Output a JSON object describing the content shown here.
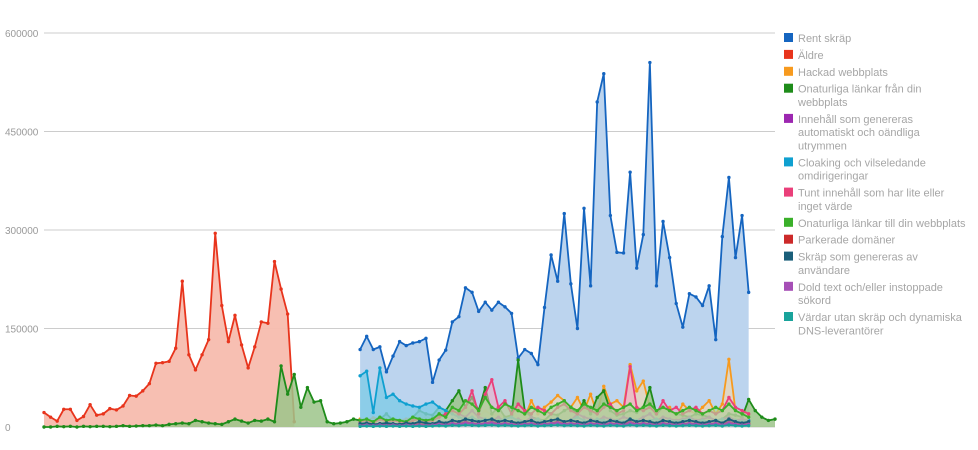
{
  "chart_data": {
    "type": "area",
    "title": "",
    "xlabel": "",
    "ylabel": "",
    "ylim": [
      0,
      600000
    ],
    "yticks": [
      0,
      150000,
      300000,
      450000,
      600000
    ],
    "ytick_labels": [
      "0",
      "150000",
      "300000",
      "450000",
      "600000"
    ],
    "grid": true,
    "legend_position": "right",
    "x_count": 112,
    "series": [
      {
        "name": "Rent skräp",
        "color": "#1565c0",
        "fill": "#bcd4ee",
        "fill_opacity": 1.0,
        "start": 48,
        "values": [
          118000,
          138000,
          118000,
          122000,
          84000,
          108000,
          130000,
          124000,
          128000,
          130000,
          135000,
          68000,
          102000,
          117000,
          160000,
          168000,
          212000,
          205000,
          176000,
          190000,
          178000,
          190000,
          183000,
          173000,
          105000,
          118000,
          112000,
          95000,
          182000,
          262000,
          222000,
          325000,
          218000,
          150000,
          333000,
          215000,
          495000,
          538000,
          322000,
          266000,
          265000,
          388000,
          242000,
          293000,
          555000,
          215000,
          313000,
          258000,
          188000,
          152000,
          203000,
          198000,
          185000,
          215000,
          133000,
          290000,
          380000,
          258000,
          322000,
          205000
        ]
      },
      {
        "name": "Äldre",
        "color": "#e8341c",
        "fill": "#f7bcae",
        "fill_opacity": 0.95,
        "start": 0,
        "values": [
          22000,
          15000,
          9000,
          27000,
          27000,
          10000,
          16000,
          34000,
          18000,
          20000,
          28000,
          26000,
          32000,
          48000,
          47000,
          55000,
          66000,
          97000,
          98000,
          100000,
          120000,
          222000,
          110000,
          87000,
          110000,
          133000,
          295000,
          185000,
          130000,
          170000,
          125000,
          90000,
          122000,
          160000,
          158000,
          252000,
          210000,
          172000,
          8000
        ]
      },
      {
        "name": "Hackad webbplats",
        "color": "#f79a1e",
        "fill": "#fcd7a6",
        "fill_opacity": 0.55,
        "start": 48,
        "values": [
          12000,
          10000,
          14000,
          12000,
          9000,
          11000,
          10000,
          12000,
          14000,
          10000,
          15000,
          12000,
          20000,
          15000,
          25000,
          12000,
          30000,
          22000,
          15000,
          25000,
          18000,
          20000,
          12000,
          14000,
          30000,
          15000,
          40000,
          20000,
          30000,
          38000,
          48000,
          40000,
          30000,
          45000,
          25000,
          50000,
          20000,
          62000,
          35000,
          40000,
          30000,
          95000,
          55000,
          70000,
          30000,
          20000,
          25000,
          30000,
          15000,
          35000,
          25000,
          20000,
          30000,
          40000,
          20000,
          35000,
          103000,
          25000,
          20000,
          18000
        ]
      },
      {
        "name": "Onaturliga länkar från din webbplats",
        "color": "#1e8c1a",
        "fill": "#9cc48a",
        "fill_opacity": 0.85,
        "start": 0,
        "values": [
          0,
          0,
          1000,
          500,
          1000,
          0,
          1000,
          500,
          1000,
          1000,
          500,
          1000,
          2000,
          1000,
          1500,
          2000,
          2000,
          3000,
          2000,
          4000,
          5000,
          6000,
          5000,
          10000,
          8000,
          6000,
          5000,
          4000,
          8000,
          12000,
          9000,
          6000,
          10000,
          9000,
          12000,
          8000,
          93000,
          50000,
          80000,
          30000,
          60000,
          38000,
          40000,
          8000,
          5000,
          6000,
          8000,
          12000,
          10000,
          8000,
          6000,
          12000,
          20000,
          10000,
          8000,
          5000,
          15000,
          25000,
          20000,
          18000,
          30000,
          25000,
          40000,
          55000,
          30000,
          45000,
          25000,
          60000,
          20000,
          30000,
          15000,
          18000,
          102000,
          25000,
          15000,
          12000,
          10000,
          20000,
          18000,
          25000,
          30000,
          20000,
          40000,
          20000,
          45000,
          55000,
          25000,
          18000,
          20000,
          25000,
          22000,
          30000,
          60000,
          20000,
          30000,
          25000,
          20000,
          18000,
          15000,
          20000,
          18000,
          15000,
          10000,
          12000,
          20000,
          18000,
          15000,
          42000,
          25000,
          15000,
          10000,
          12000
        ]
      },
      {
        "name": "Innehåll som genereras automatiskt och oändliga utrymmen",
        "color": "#9c27b0",
        "fill": "#d7a9e0",
        "fill_opacity": 0.45,
        "start": 48,
        "values": [
          5000,
          6000,
          4000,
          8000,
          5000,
          6000,
          7000,
          5000,
          6000,
          8000,
          5000,
          6000,
          10000,
          8000,
          12000,
          20000,
          15000,
          25000,
          15000,
          12000,
          10000,
          15000,
          8000,
          10000,
          12000,
          8000,
          15000,
          10000,
          8000,
          10000,
          12000,
          8000,
          10000,
          20000,
          15000,
          12000,
          10000,
          15000,
          12000,
          10000,
          15000,
          12000,
          10000,
          15000,
          20000,
          10000,
          15000,
          12000,
          10000,
          12000,
          15000,
          10000,
          12000,
          15000,
          10000,
          12000,
          15000,
          10000,
          12000,
          10000
        ]
      },
      {
        "name": "Cloaking och vilseledande omdirigeringar",
        "color": "#0fa0d0",
        "fill": "#7fcbe6",
        "fill_opacity": 0.8,
        "start": 48,
        "values": [
          78000,
          85000,
          22000,
          90000,
          45000,
          50000,
          40000,
          35000,
          32000,
          30000,
          35000,
          38000,
          30000,
          25000,
          20000,
          15000,
          12000,
          15000,
          10000,
          12000,
          8000,
          10000,
          12000,
          15000,
          10000,
          8000,
          10000,
          12000,
          8000,
          10000,
          12000,
          8000,
          10000,
          15000,
          10000,
          8000,
          12000,
          10000,
          8000,
          10000,
          8000,
          12000,
          10000,
          8000,
          10000,
          12000,
          8000,
          10000,
          8000,
          10000,
          12000,
          8000,
          10000,
          8000,
          10000,
          12000,
          8000,
          10000,
          8000,
          10000
        ]
      },
      {
        "name": "Tunt innehåll som har lite eller inget värde",
        "color": "#ea3f7a",
        "fill": "#f3a9c2",
        "fill_opacity": 0.55,
        "start": 48,
        "values": [
          8000,
          10000,
          6000,
          12000,
          8000,
          10000,
          8000,
          6000,
          10000,
          12000,
          8000,
          10000,
          15000,
          20000,
          25000,
          20000,
          30000,
          55000,
          20000,
          50000,
          72000,
          30000,
          40000,
          20000,
          35000,
          25000,
          20000,
          30000,
          25000,
          20000,
          30000,
          35000,
          25000,
          20000,
          30000,
          25000,
          20000,
          30000,
          35000,
          20000,
          25000,
          92000,
          30000,
          25000,
          30000,
          20000,
          40000,
          25000,
          30000,
          20000,
          25000,
          30000,
          20000,
          25000,
          20000,
          25000,
          45000,
          30000,
          25000,
          20000
        ]
      },
      {
        "name": "Onaturliga länkar till din webbplats",
        "color": "#3ab02a",
        "fill": "#a8dc98",
        "fill_opacity": 0.6,
        "start": 48,
        "values": [
          10000,
          12000,
          8000,
          15000,
          10000,
          12000,
          10000,
          8000,
          15000,
          12000,
          10000,
          12000,
          20000,
          15000,
          30000,
          25000,
          40000,
          35000,
          25000,
          45000,
          30000,
          25000,
          35000,
          30000,
          25000,
          20000,
          30000,
          25000,
          20000,
          30000,
          35000,
          40000,
          30000,
          25000,
          35000,
          30000,
          25000,
          35000,
          30000,
          25000,
          30000,
          35000,
          25000,
          30000,
          35000,
          25000,
          30000,
          25000,
          20000,
          25000,
          30000,
          25000,
          20000,
          25000,
          30000,
          25000,
          35000,
          25000,
          20000,
          15000
        ]
      },
      {
        "name": "Parkerade domäner",
        "color": "#cc2a2a",
        "fill": "#e8a0a0",
        "fill_opacity": 0.5,
        "start": 48,
        "values": [
          3000,
          4000,
          2000,
          5000,
          3000,
          4000,
          3000,
          2000,
          4000,
          5000,
          3000,
          4000,
          5000,
          4000,
          6000,
          5000,
          8000,
          6000,
          5000,
          6000,
          8000,
          5000,
          6000,
          5000,
          4000,
          5000,
          6000,
          4000,
          5000,
          6000,
          8000,
          5000,
          6000,
          5000,
          4000,
          6000,
          5000,
          4000,
          6000,
          5000,
          4000,
          8000,
          5000,
          6000,
          5000,
          4000,
          6000,
          5000,
          4000,
          5000,
          6000,
          5000,
          4000,
          5000,
          6000,
          4000,
          8000,
          5000,
          4000,
          5000
        ]
      },
      {
        "name": "Skräp som genereras av användare",
        "color": "#1a5f7a",
        "fill": "#8ab5c6",
        "fill_opacity": 0.5,
        "start": 48,
        "values": [
          5000,
          6000,
          4000,
          5000,
          6000,
          5000,
          4000,
          6000,
          5000,
          8000,
          6000,
          5000,
          8000,
          6000,
          10000,
          8000,
          12000,
          10000,
          8000,
          10000,
          12000,
          8000,
          10000,
          8000,
          6000,
          8000,
          10000,
          6000,
          8000,
          10000,
          12000,
          8000,
          10000,
          8000,
          6000,
          10000,
          8000,
          6000,
          10000,
          8000,
          6000,
          12000,
          8000,
          10000,
          8000,
          6000,
          10000,
          8000,
          6000,
          8000,
          10000,
          8000,
          6000,
          8000,
          10000,
          6000,
          12000,
          8000,
          6000,
          8000
        ]
      },
      {
        "name": "Dold text och/eller instoppade sökord",
        "color": "#a64fb6",
        "fill": "#d5b0dd",
        "fill_opacity": 0.5,
        "start": 48,
        "values": [
          2000,
          3000,
          2000,
          3000,
          2000,
          3000,
          2000,
          3000,
          2000,
          3000,
          2000,
          3000,
          4000,
          3000,
          5000,
          4000,
          6000,
          5000,
          4000,
          5000,
          6000,
          4000,
          5000,
          4000,
          3000,
          4000,
          5000,
          3000,
          4000,
          5000,
          6000,
          4000,
          5000,
          4000,
          3000,
          5000,
          4000,
          3000,
          5000,
          4000,
          3000,
          6000,
          4000,
          5000,
          4000,
          3000,
          5000,
          4000,
          3000,
          4000,
          5000,
          4000,
          3000,
          4000,
          5000,
          3000,
          6000,
          4000,
          3000,
          4000
        ]
      },
      {
        "name": "Värdar utan skräp och dynamiska DNS-leverantörer",
        "color": "#19a39b",
        "fill": "#9fd8d4",
        "fill_opacity": 0.5,
        "start": 48,
        "values": [
          1000,
          1500,
          1000,
          1500,
          1000,
          1500,
          1000,
          1500,
          1000,
          1500,
          1000,
          1500,
          2000,
          1500,
          2500,
          2000,
          3000,
          2500,
          2000,
          2500,
          3000,
          2000,
          2500,
          2000,
          1500,
          2000,
          2500,
          1500,
          2000,
          2500,
          3000,
          2000,
          2500,
          2000,
          1500,
          2500,
          2000,
          1500,
          2500,
          2000,
          1500,
          3000,
          2000,
          2500,
          2000,
          1500,
          2500,
          2000,
          1500,
          2000,
          2500,
          2000,
          1500,
          2000,
          2500,
          1500,
          3000,
          2000,
          1500,
          2000
        ]
      }
    ],
    "legend": [
      {
        "lines": [
          "Rent skräp"
        ]
      },
      {
        "lines": [
          "Äldre"
        ]
      },
      {
        "lines": [
          "Hackad webbplats"
        ]
      },
      {
        "lines": [
          "Onaturliga länkar från din",
          "webbplats"
        ]
      },
      {
        "lines": [
          "Innehåll som genereras",
          "automatiskt och oändliga",
          "utrymmen"
        ]
      },
      {
        "lines": [
          "Cloaking och vilseledande",
          "omdirigeringar"
        ]
      },
      {
        "lines": [
          "Tunt innehåll som har lite eller",
          "inget värde"
        ]
      },
      {
        "lines": [
          "Onaturliga länkar till din webbplats"
        ]
      },
      {
        "lines": [
          "Parkerade domäner"
        ]
      },
      {
        "lines": [
          "Skräp som genereras av",
          "användare"
        ]
      },
      {
        "lines": [
          "Dold text och/eller instoppade",
          "sökord"
        ]
      },
      {
        "lines": [
          "Värdar utan skräp och dynamiska",
          "DNS-leverantörer"
        ]
      }
    ]
  }
}
